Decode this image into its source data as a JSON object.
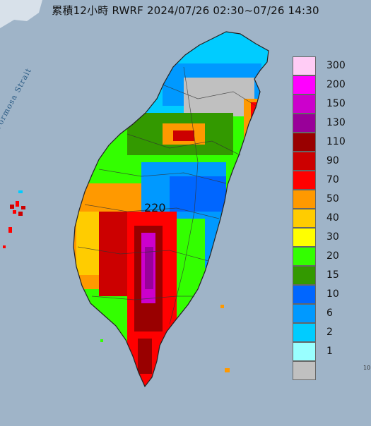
{
  "title": "累積12小時 RWRF 2024/07/26 02:30~07/26 14:30",
  "strait_label": "Formosa Strait",
  "peak_label": "220",
  "corner_mark": "10",
  "legend": [
    {
      "label": "300",
      "color": "#ffccf5"
    },
    {
      "label": "200",
      "color": "#ff00ff"
    },
    {
      "label": "150",
      "color": "#cc00cc"
    },
    {
      "label": "130",
      "color": "#990099"
    },
    {
      "label": "110",
      "color": "#990000"
    },
    {
      "label": "90",
      "color": "#cc0000"
    },
    {
      "label": "70",
      "color": "#ff0000"
    },
    {
      "label": "50",
      "color": "#ff9900"
    },
    {
      "label": "40",
      "color": "#ffcc00"
    },
    {
      "label": "30",
      "color": "#ffff00"
    },
    {
      "label": "20",
      "color": "#33ff00"
    },
    {
      "label": "15",
      "color": "#339900"
    },
    {
      "label": "10",
      "color": "#0066ff"
    },
    {
      "label": "6",
      "color": "#0099ff"
    },
    {
      "label": "2",
      "color": "#00ccff"
    },
    {
      "label": "1",
      "color": "#99ffff"
    },
    {
      "label": "",
      "color": "#c0c0c0"
    }
  ],
  "colors": {
    "sea": "#9fb4c8",
    "outline": "#222222"
  }
}
